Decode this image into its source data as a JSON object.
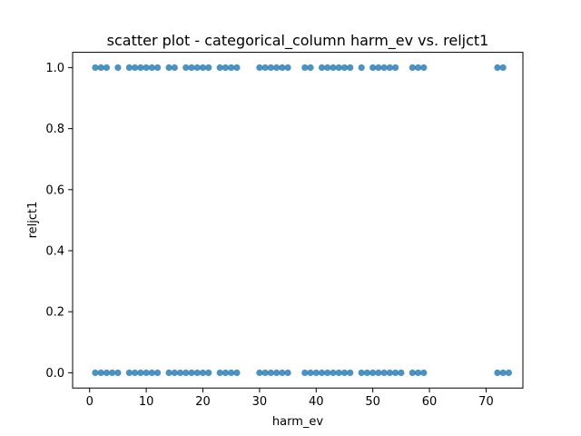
{
  "chart_data": {
    "type": "scatter",
    "title": "scatter plot - categorical_column harm_ev vs. reljct1",
    "xlabel": "harm_ev",
    "ylabel": "reljct1",
    "xlim": [
      -3,
      76.5
    ],
    "ylim": [
      -0.05,
      1.05
    ],
    "xticks": [
      0,
      10,
      20,
      30,
      40,
      50,
      60,
      70
    ],
    "xtick_labels": [
      "0",
      "10",
      "20",
      "30",
      "40",
      "50",
      "60",
      "70"
    ],
    "yticks": [
      0.0,
      0.2,
      0.4,
      0.6,
      0.8,
      1.0
    ],
    "ytick_labels": [
      "0.0",
      "0.2",
      "0.4",
      "0.6",
      "0.8",
      "1.0"
    ],
    "grid": false,
    "point_color": "#1f77b4",
    "series": [
      {
        "x": [
          1,
          2,
          3,
          5,
          7,
          8,
          9,
          10,
          11,
          12,
          14,
          15,
          17,
          18,
          19,
          20,
          21,
          23,
          24,
          25,
          26,
          30,
          31,
          32,
          33,
          34,
          35,
          38,
          39,
          41,
          42,
          43,
          44,
          45,
          46,
          48,
          50,
          51,
          52,
          53,
          54,
          57,
          58,
          59,
          72,
          73,
          1,
          2,
          3,
          4,
          5,
          7,
          8,
          9,
          10,
          11,
          12,
          14,
          15,
          16,
          17,
          18,
          19,
          20,
          21,
          23,
          24,
          25,
          26,
          30,
          31,
          32,
          33,
          34,
          35,
          38,
          39,
          40,
          41,
          42,
          43,
          44,
          45,
          46,
          48,
          49,
          50,
          51,
          52,
          53,
          54,
          55,
          57,
          58,
          59,
          72,
          73,
          74
        ],
        "y": [
          1,
          1,
          1,
          1,
          1,
          1,
          1,
          1,
          1,
          1,
          1,
          1,
          1,
          1,
          1,
          1,
          1,
          1,
          1,
          1,
          1,
          1,
          1,
          1,
          1,
          1,
          1,
          1,
          1,
          1,
          1,
          1,
          1,
          1,
          1,
          1,
          1,
          1,
          1,
          1,
          1,
          1,
          1,
          1,
          1,
          1,
          0,
          0,
          0,
          0,
          0,
          0,
          0,
          0,
          0,
          0,
          0,
          0,
          0,
          0,
          0,
          0,
          0,
          0,
          0,
          0,
          0,
          0,
          0,
          0,
          0,
          0,
          0,
          0,
          0,
          0,
          0,
          0,
          0,
          0,
          0,
          0,
          0,
          0,
          0,
          0,
          0,
          0,
          0,
          0,
          0,
          0,
          0,
          0,
          0,
          0,
          0,
          0
        ]
      }
    ]
  }
}
